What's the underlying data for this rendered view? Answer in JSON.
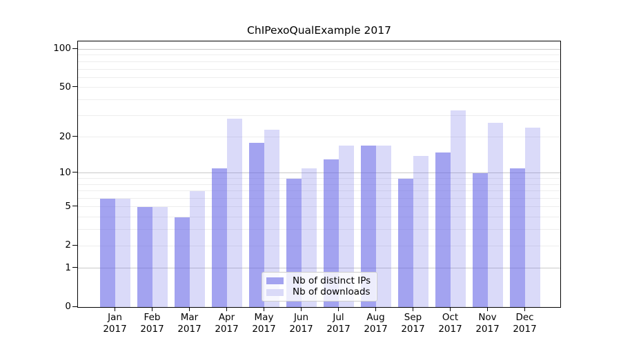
{
  "figure": {
    "background": "#ffffff"
  },
  "chart_data": {
    "type": "bar",
    "title": "ChIPexoQualExample 2017",
    "categories": [
      "Jan 2017",
      "Feb 2017",
      "Mar 2017",
      "Apr 2017",
      "May 2017",
      "Jun 2017",
      "Jul 2017",
      "Aug 2017",
      "Sep 2017",
      "Oct 2017",
      "Nov 2017",
      "Dec 2017"
    ],
    "series": [
      {
        "name": "Nb of distinct IPs",
        "values": [
          6,
          5,
          4,
          11,
          18,
          9,
          13,
          17,
          9,
          15,
          10,
          11
        ],
        "color": "rgba(102,102,230,0.6)",
        "color_hex": "#a3a3f0"
      },
      {
        "name": "Nb of downloads",
        "values": [
          6,
          5,
          7,
          28,
          23,
          11,
          17,
          17,
          14,
          33,
          26,
          24
        ],
        "color": "rgba(102,102,230,0.24)",
        "color_hex": "#dadaf8"
      }
    ],
    "xlabel": "",
    "ylabel": "",
    "yscale": "log1p",
    "yticks": [
      0,
      1,
      2,
      5,
      10,
      20,
      50,
      100
    ],
    "ylim": [
      0,
      115
    ],
    "gridlines": {
      "major": [
        1,
        10,
        100
      ],
      "minor": [
        2,
        3,
        4,
        5,
        6,
        7,
        8,
        9,
        20,
        30,
        40,
        50,
        60,
        70,
        80,
        90
      ],
      "orientation": "horizontal"
    },
    "legend_position": "inside-bottom-center"
  },
  "colors": {
    "grid_major": "#c9c9c9",
    "grid_minor": "#ededed",
    "spine": "#000000",
    "text": "#000000",
    "legend_border": "#cccccc",
    "legend_bg": "rgba(255,255,255,0.8)"
  }
}
